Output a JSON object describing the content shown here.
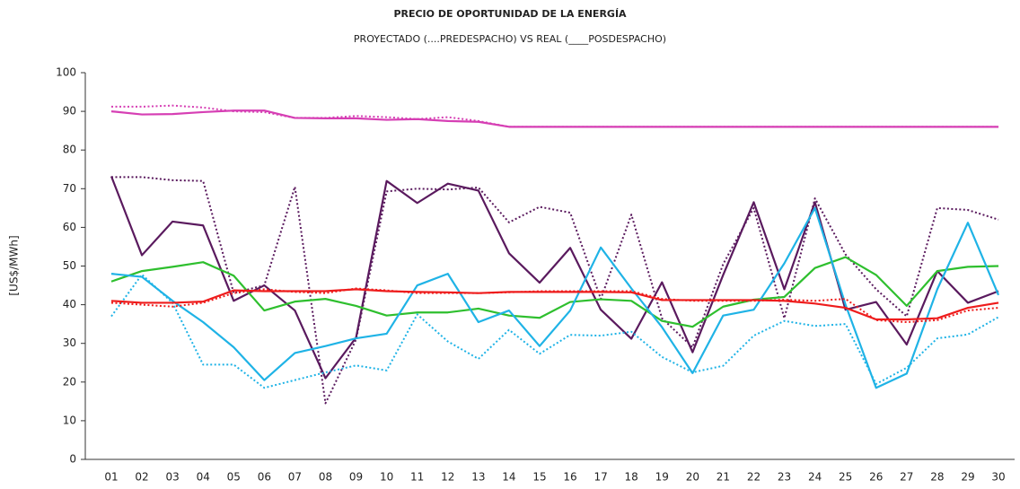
{
  "chart_data": {
    "type": "line",
    "title": "PRECIO DE OPORTUNIDAD DE LA ENERGÍA",
    "subtitle": "PROYECTADO (....PREDESPACHO) VS REAL (____POSDESPACHO)",
    "y_label": "[US$/MWh]",
    "categories": [
      "01",
      "02",
      "03",
      "04",
      "05",
      "06",
      "07",
      "08",
      "09",
      "10",
      "11",
      "12",
      "13",
      "14",
      "15",
      "16",
      "17",
      "18",
      "19",
      "20",
      "21",
      "22",
      "23",
      "24",
      "25",
      "26",
      "27",
      "28",
      "29",
      "30"
    ],
    "ylim": [
      0,
      100
    ],
    "yticks": [
      0,
      10,
      20,
      30,
      40,
      50,
      60,
      70,
      80,
      90,
      100
    ],
    "series": [
      {
        "color": "#d63fb4",
        "style": "solid",
        "values": [
          90,
          89.2,
          89.3,
          89.8,
          90.2,
          90.2,
          88.3,
          88.2,
          88.2,
          87.8,
          88,
          87.5,
          87.3,
          86,
          86,
          86,
          86,
          86,
          86,
          86,
          86,
          86,
          86,
          86,
          86,
          86,
          86,
          86,
          86,
          86
        ]
      },
      {
        "color": "#d63fb4",
        "style": "dotted",
        "values": [
          91.2,
          91.2,
          91.5,
          91,
          90,
          89.8,
          88.3,
          88.3,
          88.8,
          88.5,
          88,
          88.5,
          87.5,
          86,
          86,
          86,
          86,
          86,
          86,
          86,
          86,
          86,
          86,
          86,
          86,
          86,
          86,
          86,
          86,
          86
        ]
      },
      {
        "color": "#5a1a5e",
        "style": "solid",
        "values": [
          73.2,
          52.8,
          61.5,
          60.5,
          41,
          45,
          38.5,
          21,
          31.5,
          72,
          66.3,
          71.3,
          69.5,
          53.3,
          45.7,
          54.7,
          38.7,
          31.2,
          45.8,
          27.7,
          47.7,
          66.5,
          44,
          66.5,
          38.7,
          40.7,
          29.7,
          48.7,
          40.5,
          43.5
        ]
      },
      {
        "color": "#5a1a5e",
        "style": "dotted",
        "values": [
          73,
          73,
          72.2,
          72,
          43,
          45,
          70.5,
          14.5,
          31,
          69.3,
          70,
          69.8,
          70.3,
          61.3,
          65.3,
          63.8,
          41.5,
          63.3,
          36.5,
          29,
          50.5,
          65,
          36.5,
          67.5,
          53,
          44,
          37,
          65,
          64.5,
          62
        ]
      },
      {
        "color": "#2ebf2e",
        "style": "solid",
        "values": [
          46,
          48.7,
          49.8,
          51,
          47.5,
          38.5,
          40.8,
          41.5,
          39.7,
          37.2,
          38,
          38,
          39,
          37.2,
          36.6,
          40.7,
          41.4,
          41,
          35.8,
          34.3,
          39.5,
          41.3,
          42,
          49.5,
          52.3,
          47.7,
          39.7,
          48.7,
          49.8,
          50
        ]
      },
      {
        "color": "#1fb3e6",
        "style": "solid",
        "values": [
          48,
          47.2,
          41,
          35.5,
          29,
          20.5,
          27.5,
          29.3,
          31.3,
          32.5,
          45,
          48,
          35.5,
          38.5,
          29.3,
          38.5,
          54.8,
          44.2,
          34.2,
          22.3,
          37.2,
          38.7,
          50.7,
          65,
          40,
          18.5,
          22.2,
          44,
          61.2,
          42.5
        ]
      },
      {
        "color": "#1fb3e6",
        "style": "dotted",
        "values": [
          37,
          47.8,
          40.5,
          24.5,
          24.5,
          18.5,
          20.5,
          22.5,
          24.3,
          23,
          37.5,
          30.5,
          26,
          33.5,
          27.3,
          32.2,
          32,
          33,
          26.5,
          22.5,
          24.2,
          32,
          35.8,
          34.5,
          35,
          19.5,
          23.7,
          31.3,
          32.3,
          36.8
        ]
      },
      {
        "color": "#ee1c1c",
        "style": "solid",
        "values": [
          41,
          40.5,
          40.5,
          40.8,
          43.7,
          43.5,
          43.5,
          43.5,
          44,
          43.5,
          43.3,
          43.2,
          43,
          43.3,
          43.3,
          43.3,
          43.3,
          43.2,
          41.2,
          41.2,
          41.2,
          41.2,
          41,
          40.3,
          39.2,
          36.2,
          36.2,
          36.5,
          39.2,
          40.5
        ]
      },
      {
        "color": "#ee1c1c",
        "style": "dotted",
        "values": [
          40.5,
          40,
          39.5,
          40.5,
          43,
          44,
          43.3,
          43,
          44.2,
          43.7,
          43,
          43,
          43,
          43.2,
          43.5,
          43.5,
          43.5,
          43.5,
          41.5,
          41,
          41,
          41,
          41.3,
          41,
          41.5,
          36,
          35.5,
          36,
          38.5,
          39.2
        ]
      }
    ]
  }
}
